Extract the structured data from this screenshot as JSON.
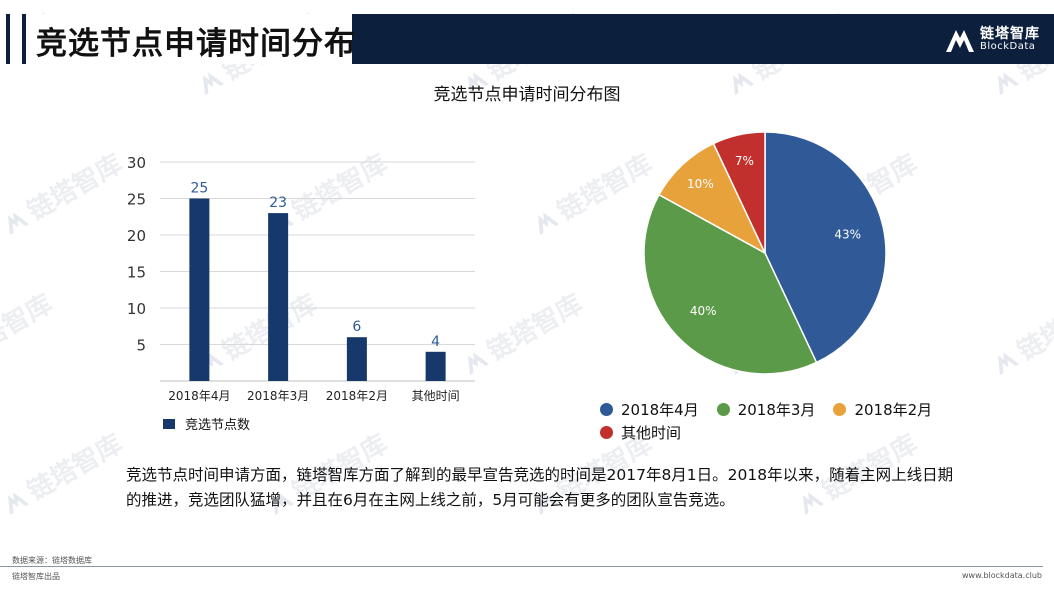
{
  "header": {
    "title": "竞选节点申请时间分布",
    "brand_cn": "链塔智库",
    "brand_en": "BlockData"
  },
  "watermark_text": "链塔智库",
  "chart_title": "竞选节点申请时间分布图",
  "chart_data": [
    {
      "type": "bar",
      "categories": [
        "2018年4月",
        "2018年3月",
        "2018年2月",
        "其他时间"
      ],
      "series": [
        {
          "name": "竞选节点数",
          "values": [
            25,
            23,
            6,
            4
          ]
        }
      ],
      "ylim": [
        0,
        30
      ],
      "yticks": [
        5,
        10,
        15,
        20,
        25,
        30
      ],
      "grid": true,
      "legend": "bottom-left",
      "color": "#16386b"
    },
    {
      "type": "pie",
      "categories": [
        "2018年4月",
        "2018年3月",
        "2018年2月",
        "其他时间"
      ],
      "values": [
        43,
        40,
        10,
        7
      ],
      "labels": [
        "43%",
        "40%",
        "10%",
        "7%"
      ],
      "colors": [
        "#2f5a97",
        "#5a9a48",
        "#e8a23b",
        "#c2302e"
      ],
      "legend": "bottom"
    }
  ],
  "description": "竞选节点时间申请方面，链塔智库方面了解到的最早宣告竞选的时间是2017年8月1日。2018年以来，随着主网上线日期的推进，竞选团队猛增，并且在6月在主网上线之前，5月可能会有更多的团队宣告竞选。",
  "footer": {
    "source": "数据来源：链塔数据库",
    "left": "链塔智库出品",
    "right": "www.blockdata.club"
  },
  "colors": {
    "header_bg": "#0c1f3d",
    "bar": "#16386b"
  }
}
